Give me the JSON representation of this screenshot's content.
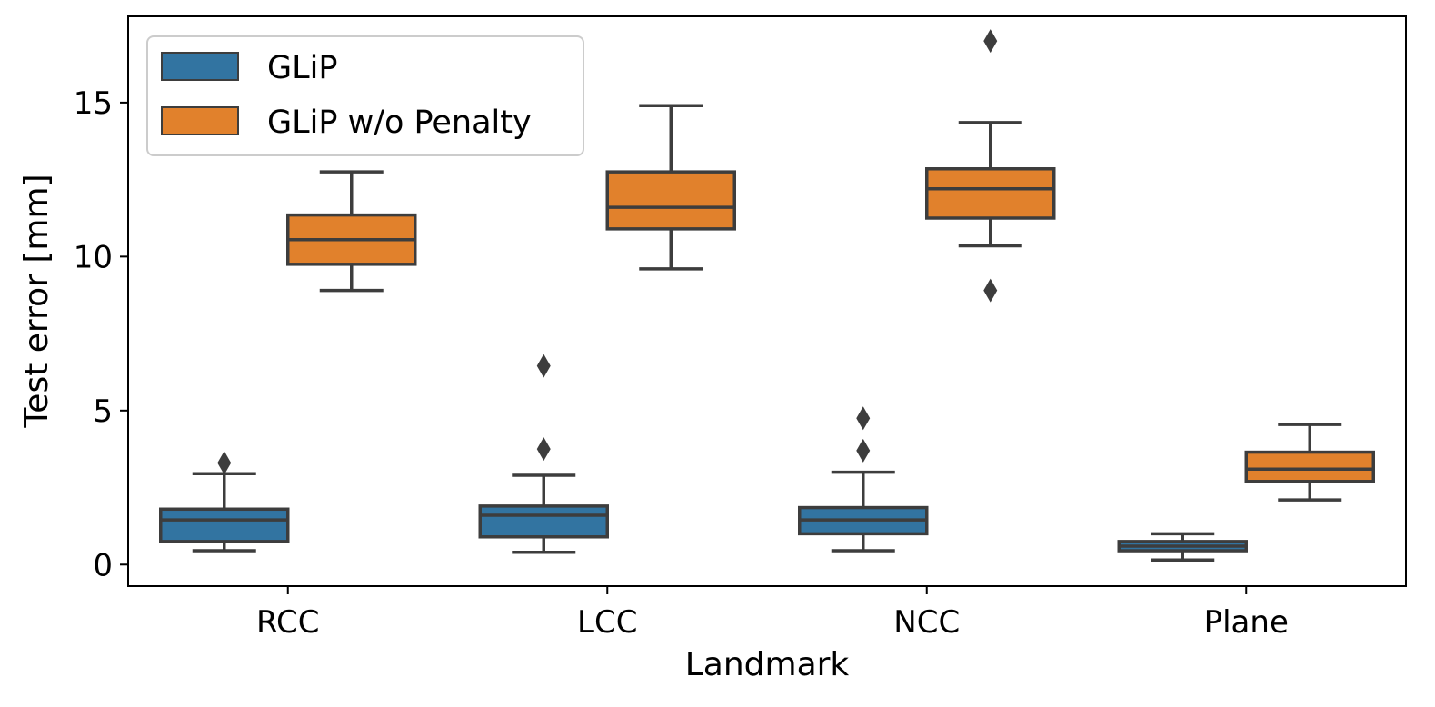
{
  "chart_data": {
    "type": "boxplot",
    "title": "",
    "xlabel": "Landmark",
    "ylabel": "Test error [mm]",
    "ylim": [
      -0.7,
      17.8
    ],
    "yticks": [
      0,
      5,
      10,
      15
    ],
    "ytick_labels": [
      "0",
      "5",
      "10",
      "15"
    ],
    "categories": [
      "RCC",
      "LCC",
      "NCC",
      "Plane"
    ],
    "legend": {
      "position": "upper-left"
    },
    "series": [
      {
        "name": "GLiP",
        "color": "#3274a1",
        "boxes": [
          {
            "whislo": 0.45,
            "q1": 0.75,
            "med": 1.45,
            "q3": 1.8,
            "whishi": 2.95,
            "fliers": [
              3.3
            ]
          },
          {
            "whislo": 0.4,
            "q1": 0.9,
            "med": 1.6,
            "q3": 1.9,
            "whishi": 2.9,
            "fliers": [
              3.75,
              6.45
            ]
          },
          {
            "whislo": 0.45,
            "q1": 1.0,
            "med": 1.45,
            "q3": 1.85,
            "whishi": 3.0,
            "fliers": [
              3.7,
              4.75
            ]
          },
          {
            "whislo": 0.15,
            "q1": 0.45,
            "med": 0.6,
            "q3": 0.75,
            "whishi": 1.0,
            "fliers": []
          }
        ]
      },
      {
        "name": "GLiP w/o Penalty",
        "color": "#e1812c",
        "boxes": [
          {
            "whislo": 8.9,
            "q1": 9.75,
            "med": 10.55,
            "q3": 11.35,
            "whishi": 12.75,
            "fliers": []
          },
          {
            "whislo": 9.6,
            "q1": 10.9,
            "med": 11.6,
            "q3": 12.75,
            "whishi": 14.9,
            "fliers": []
          },
          {
            "whislo": 10.35,
            "q1": 11.25,
            "med": 12.2,
            "q3": 12.85,
            "whishi": 14.35,
            "fliers": [
              8.9,
              17.0
            ]
          },
          {
            "whislo": 2.1,
            "q1": 2.7,
            "med": 3.1,
            "q3": 3.65,
            "whishi": 4.55,
            "fliers": []
          }
        ]
      }
    ]
  }
}
